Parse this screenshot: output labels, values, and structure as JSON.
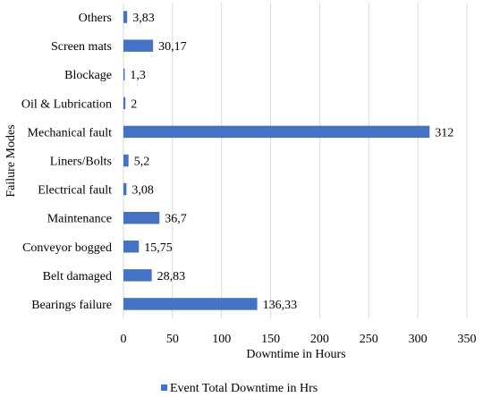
{
  "chart_data": {
    "type": "bar",
    "orientation": "horizontal",
    "categories": [
      "Bearings failure",
      "Belt damaged",
      "Conveyor bogged",
      "Maintenance",
      "Electrical fault",
      "Liners/Bolts",
      "Mechanical fault",
      "Oil & Lubrication",
      "Blockage",
      "Screen mats",
      "Others"
    ],
    "series": [
      {
        "name": "Event Total Downtime in Hrs",
        "values": [
          136.33,
          28.83,
          15.75,
          36.7,
          3.08,
          5.2,
          312,
          2,
          1.3,
          30.17,
          3.83
        ],
        "labels": [
          "136,33",
          "28,83",
          "15,75",
          "36,7",
          "3,08",
          "5,2",
          "312",
          "2",
          "1,3",
          "30,17",
          "3,83"
        ],
        "color": "#4472c4"
      }
    ],
    "xlabel": "Downtime in Hours",
    "ylabel": "Failure Modes",
    "xlim": [
      0,
      350
    ],
    "xticks": [
      "0",
      "50",
      "100",
      "150",
      "200",
      "250",
      "300",
      "350"
    ],
    "grid": "vertical",
    "legend_position": "bottom"
  }
}
